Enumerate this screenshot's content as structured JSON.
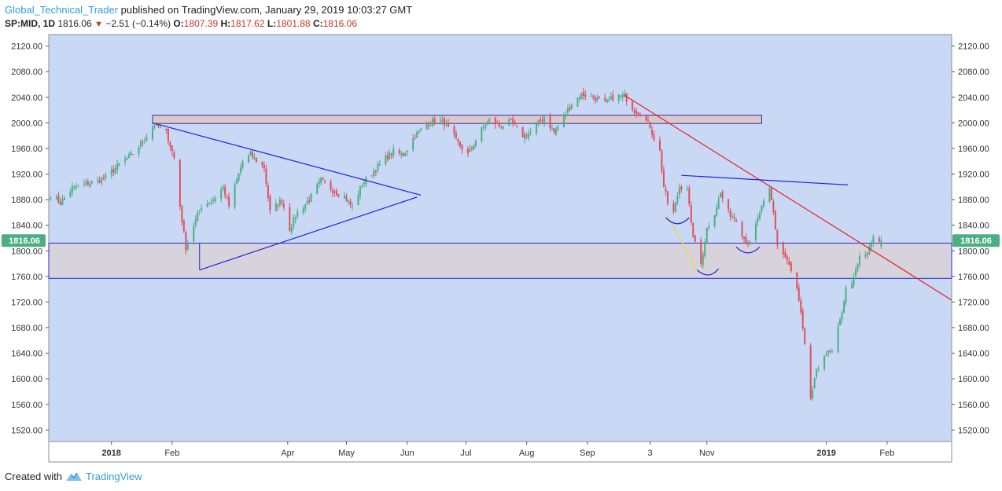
{
  "header": {
    "author": "Global_Technical_Trader",
    "published_text": "published on TradingView.com, January 29, 2019 10:03:27 GMT",
    "symbol": "SP:MID, 1D",
    "last": "1816.06",
    "change": "−2.51 (−0.14%)",
    "open_label": "O:",
    "open": "1807.39",
    "high_label": "H:",
    "high": "1817.62",
    "low_label": "L:",
    "low": "1801.88",
    "close_label": "C:",
    "close": "1816.06"
  },
  "footer": {
    "created_with": "Created with",
    "brand": "TradingView",
    "logo_icon": "tradingview-logo-icon"
  },
  "chart_data": {
    "type": "candlestick",
    "y_ticks": [
      "2120.00",
      "2080.00",
      "2040.00",
      "2000.00",
      "1960.00",
      "1920.00",
      "1880.00",
      "1840.00",
      "1800.00",
      "1760.00",
      "1720.00",
      "1680.00",
      "1640.00",
      "1600.00",
      "1560.00",
      "1520.00"
    ],
    "y_tick_values": [
      2120,
      2080,
      2040,
      2000,
      1960,
      1920,
      1880,
      1840,
      1800,
      1760,
      1720,
      1680,
      1640,
      1600,
      1560,
      1520
    ],
    "ylim": [
      1502,
      2138
    ],
    "x_ticks": [
      {
        "label": "2018",
        "date": "2018-01-01",
        "bold": true
      },
      {
        "label": "Feb",
        "date": "2018-02-01",
        "bold": false
      },
      {
        "label": "Apr",
        "date": "2018-04-01",
        "bold": false
      },
      {
        "label": "May",
        "date": "2018-05-01",
        "bold": false
      },
      {
        "label": "Jun",
        "date": "2018-06-01",
        "bold": false
      },
      {
        "label": "Jul",
        "date": "2018-07-01",
        "bold": false
      },
      {
        "label": "Aug",
        "date": "2018-08-01",
        "bold": false
      },
      {
        "label": "Sep",
        "date": "2018-09-01",
        "bold": false
      },
      {
        "label": "3",
        "date": "2018-10-03",
        "bold": false
      },
      {
        "label": "Nov",
        "date": "2018-11-01",
        "bold": false
      },
      {
        "label": "2019",
        "date": "2019-01-01",
        "bold": true
      },
      {
        "label": "Feb",
        "date": "2019-02-01",
        "bold": false
      }
    ],
    "xlim": [
      "2017-11-30",
      "2019-03-06"
    ],
    "last_price_label": "1816.06",
    "last_price": 1816.06,
    "colors": {
      "up": "#4caf82",
      "down": "#e0505c",
      "background": "#c8d8f5",
      "last_price_badge": "#4caf82"
    },
    "close_anchors": [
      [
        "2017-12-01",
        1888
      ],
      [
        "2017-12-06",
        1875
      ],
      [
        "2017-12-12",
        1898
      ],
      [
        "2017-12-20",
        1905
      ],
      [
        "2017-12-28",
        1912
      ],
      [
        "2018-01-05",
        1935
      ],
      [
        "2018-01-12",
        1952
      ],
      [
        "2018-01-18",
        1975
      ],
      [
        "2018-01-23",
        1998
      ],
      [
        "2018-01-29",
        1985
      ],
      [
        "2018-02-02",
        1945
      ],
      [
        "2018-02-05",
        1870
      ],
      [
        "2018-02-08",
        1805
      ],
      [
        "2018-02-12",
        1840
      ],
      [
        "2018-02-16",
        1870
      ],
      [
        "2018-02-22",
        1880
      ],
      [
        "2018-02-27",
        1900
      ],
      [
        "2018-03-02",
        1870
      ],
      [
        "2018-03-09",
        1940
      ],
      [
        "2018-03-13",
        1950
      ],
      [
        "2018-03-20",
        1930
      ],
      [
        "2018-03-23",
        1860
      ],
      [
        "2018-03-29",
        1880
      ],
      [
        "2018-04-02",
        1835
      ],
      [
        "2018-04-06",
        1860
      ],
      [
        "2018-04-12",
        1880
      ],
      [
        "2018-04-18",
        1910
      ],
      [
        "2018-04-24",
        1895
      ],
      [
        "2018-04-30",
        1885
      ],
      [
        "2018-05-04",
        1868
      ],
      [
        "2018-05-09",
        1905
      ],
      [
        "2018-05-15",
        1925
      ],
      [
        "2018-05-21",
        1945
      ],
      [
        "2018-05-25",
        1955
      ],
      [
        "2018-05-30",
        1950
      ],
      [
        "2018-06-05",
        1980
      ],
      [
        "2018-06-11",
        1998
      ],
      [
        "2018-06-15",
        2004
      ],
      [
        "2018-06-20",
        2000
      ],
      [
        "2018-06-27",
        1968
      ],
      [
        "2018-07-02",
        1950
      ],
      [
        "2018-07-09",
        1990
      ],
      [
        "2018-07-13",
        2005
      ],
      [
        "2018-07-18",
        1995
      ],
      [
        "2018-07-24",
        2000
      ],
      [
        "2018-07-30",
        1980
      ],
      [
        "2018-08-03",
        1985
      ],
      [
        "2018-08-10",
        2010
      ],
      [
        "2018-08-15",
        1985
      ],
      [
        "2018-08-21",
        2015
      ],
      [
        "2018-08-24",
        2030
      ],
      [
        "2018-08-29",
        2045
      ],
      [
        "2018-09-04",
        2040
      ],
      [
        "2018-09-10",
        2030
      ],
      [
        "2018-09-14",
        2040
      ],
      [
        "2018-09-20",
        2042
      ],
      [
        "2018-09-25",
        2020
      ],
      [
        "2018-09-28",
        2015
      ],
      [
        "2018-10-03",
        1995
      ],
      [
        "2018-10-05",
        1975
      ],
      [
        "2018-10-08",
        1955
      ],
      [
        "2018-10-10",
        1900
      ],
      [
        "2018-10-12",
        1875
      ],
      [
        "2018-10-15",
        1860
      ],
      [
        "2018-10-18",
        1900
      ],
      [
        "2018-10-22",
        1900
      ],
      [
        "2018-10-24",
        1840
      ],
      [
        "2018-10-26",
        1810
      ],
      [
        "2018-10-29",
        1780
      ],
      [
        "2018-11-01",
        1835
      ],
      [
        "2018-11-05",
        1860
      ],
      [
        "2018-11-08",
        1890
      ],
      [
        "2018-11-12",
        1860
      ],
      [
        "2018-11-16",
        1850
      ],
      [
        "2018-11-20",
        1820
      ],
      [
        "2018-11-23",
        1810
      ],
      [
        "2018-11-28",
        1860
      ],
      [
        "2018-12-03",
        1895
      ],
      [
        "2018-12-05",
        1860
      ],
      [
        "2018-12-07",
        1810
      ],
      [
        "2018-12-12",
        1785
      ],
      [
        "2018-12-17",
        1740
      ],
      [
        "2018-12-19",
        1700
      ],
      [
        "2018-12-21",
        1650
      ],
      [
        "2018-12-24",
        1570
      ],
      [
        "2018-12-27",
        1610
      ],
      [
        "2018-12-31",
        1640
      ],
      [
        "2019-01-04",
        1640
      ],
      [
        "2019-01-08",
        1690
      ],
      [
        "2019-01-11",
        1740
      ],
      [
        "2019-01-15",
        1755
      ],
      [
        "2019-01-18",
        1790
      ],
      [
        "2019-01-22",
        1795
      ],
      [
        "2019-01-25",
        1818
      ],
      [
        "2019-01-29",
        1816.06
      ]
    ],
    "drawings": {
      "resistance_box": {
        "x1": "2018-01-22",
        "x2": "2018-11-29",
        "y1": 1999,
        "y2": 2012
      },
      "support_box": {
        "x1": "2017-11-30",
        "x2": "2019-03-06",
        "y1": 1757,
        "y2": 1812
      },
      "triangle_upper": [
        [
          "2018-01-22",
          2000
        ],
        [
          "2018-06-08",
          1887
        ]
      ],
      "triangle_lower": [
        [
          "2018-02-15",
          1770
        ],
        [
          "2018-06-06",
          1884
        ]
      ],
      "downtrend_line": [
        [
          "2018-09-20",
          2043
        ],
        [
          "2019-03-06",
          1723
        ]
      ],
      "neckline": [
        [
          "2018-10-19",
          1918
        ],
        [
          "2019-01-12",
          1903
        ]
      ],
      "yellow_line": [
        [
          "2018-10-12",
          1855
        ],
        [
          "2018-10-27",
          1770
        ]
      ],
      "arcs": [
        [
          [
            "2018-10-11",
            1852
          ],
          [
            "2018-10-17",
            1845
          ],
          [
            "2018-10-23",
            1852
          ]
        ],
        [
          [
            "2018-10-27",
            1770
          ],
          [
            "2018-11-02",
            1766
          ],
          [
            "2018-11-07",
            1772
          ]
        ],
        [
          [
            "2018-11-16",
            1806
          ],
          [
            "2018-11-22",
            1800
          ],
          [
            "2018-11-28",
            1806
          ]
        ]
      ]
    }
  }
}
